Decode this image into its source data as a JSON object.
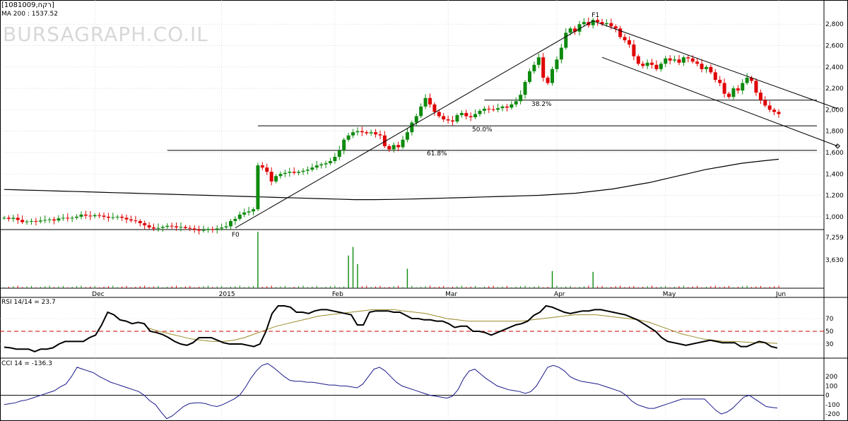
{
  "header": {
    "symbol": "[1081009,רקח]",
    "ma_label": "MA 200 : 1537.52",
    "watermark": "BURSAGRAPH.CO.IL"
  },
  "price_axis": {
    "ticks": [
      "2,800",
      "2,600",
      "2,400",
      "2,200",
      "2,000",
      "1,800",
      "1,600",
      "1,400",
      "1,200",
      "1,000"
    ]
  },
  "volume_axis": {
    "ticks": [
      "7,259",
      "3,630"
    ]
  },
  "months": [
    "Dec",
    "2015",
    "Feb",
    "Mar",
    "Apr",
    "May",
    "Jun"
  ],
  "fib": [
    {
      "label": "38.2%"
    },
    {
      "label": "50.0%"
    },
    {
      "label": "61.8%"
    }
  ],
  "points": {
    "f0": "F0",
    "f1": "F1"
  },
  "rsi": {
    "label": "RSI 14/14 = 23.7",
    "ticks": [
      "70",
      "50",
      "30"
    ]
  },
  "cci": {
    "label": "CCI 14 = -136.3",
    "ticks": [
      "200",
      "100",
      "0",
      "-100",
      "-200"
    ]
  },
  "colors": {
    "up": "#0e8a0e",
    "down": "#e00000",
    "line": "#000000",
    "rsi_signal": "#9a8a2a",
    "cci": "#1a1a8c",
    "rsi_mid": "#cc0000",
    "grid": "#c8c8c8"
  },
  "chart_data": [
    {
      "type": "candlestick",
      "ylim": [
        880,
        2960
      ],
      "y_ticks": [
        1000,
        1200,
        1400,
        1600,
        1800,
        2000,
        2200,
        2400,
        2600,
        2800
      ],
      "x_months": [
        {
          "label": "Dec",
          "index": 20
        },
        {
          "label": "2015",
          "index": 48
        },
        {
          "label": "Feb",
          "index": 73
        },
        {
          "label": "Mar",
          "index": 98
        },
        {
          "label": "Apr",
          "index": 122
        },
        {
          "label": "May",
          "index": 146
        },
        {
          "label": "Jun",
          "index": 171
        }
      ],
      "closes": [
        990,
        980,
        990,
        970,
        950,
        955,
        960,
        955,
        965,
        970,
        975,
        965,
        985,
        990,
        985,
        990,
        1000,
        1020,
        1010,
        1005,
        1015,
        1010,
        1000,
        990,
        995,
        1000,
        990,
        975,
        965,
        960,
        940,
        920,
        900,
        890,
        895,
        905,
        915,
        910,
        900,
        905,
        895,
        890,
        880,
        870,
        875,
        885,
        880,
        890,
        900,
        910,
        960,
        980,
        1020,
        1040,
        1050,
        1070,
        1480,
        1460,
        1420,
        1330,
        1380,
        1400,
        1410,
        1420,
        1410,
        1420,
        1430,
        1440,
        1460,
        1480,
        1490,
        1500,
        1520,
        1560,
        1620,
        1720,
        1760,
        1790,
        1800,
        1790,
        1780,
        1790,
        1770,
        1760,
        1660,
        1630,
        1670,
        1650,
        1720,
        1790,
        1880,
        1940,
        2030,
        2110,
        2050,
        1980,
        1940,
        1910,
        1900,
        1890,
        1950,
        1970,
        1940,
        1930,
        1960,
        1990,
        2010,
        2005,
        2000,
        2015,
        2030,
        2020,
        2050,
        2080,
        2140,
        2260,
        2360,
        2420,
        2490,
        2300,
        2250,
        2380,
        2470,
        2580,
        2720,
        2760,
        2730,
        2800,
        2820,
        2790,
        2840,
        2820,
        2800,
        2810,
        2780,
        2760,
        2680,
        2650,
        2610,
        2500,
        2430,
        2410,
        2440,
        2420,
        2380,
        2430,
        2480,
        2460,
        2470,
        2440,
        2490,
        2480,
        2450,
        2430,
        2380,
        2400,
        2350,
        2280,
        2250,
        2150,
        2120,
        2200,
        2180,
        2250,
        2300,
        2270,
        2160,
        2090,
        2040,
        2000,
        1980,
        1960
      ],
      "ma200": [
        1255,
        1250,
        1245,
        1240,
        1235,
        1230,
        1225,
        1220,
        1215,
        1210,
        1205,
        1200,
        1195,
        1190,
        1185,
        1180,
        1175,
        1170,
        1165,
        1160,
        1160,
        1162,
        1165,
        1170,
        1175,
        1180,
        1185,
        1190,
        1195,
        1200,
        1210,
        1220,
        1240,
        1260,
        1290,
        1320,
        1360,
        1400,
        1440,
        1470,
        1500,
        1520,
        1537.52
      ],
      "trendlines": [
        {
          "from": [
            51,
            895
          ],
          "to": [
            130,
            2830
          ]
        },
        {
          "from": [
            130,
            2830
          ],
          "to": [
            184,
            2010
          ]
        },
        {
          "from": [
            132,
            2490
          ],
          "to": [
            184,
            1660
          ]
        }
      ],
      "fib_levels": [
        {
          "label": "38.2%",
          "value": 2090
        },
        {
          "label": "50.0%",
          "value": 1850
        },
        {
          "label": "61.8%",
          "value": 1620
        }
      ],
      "base_level": 880
    },
    {
      "type": "bar",
      "name": "volume",
      "ylim": [
        0,
        7259
      ],
      "spikes": [
        {
          "index": 56,
          "value": 7259
        },
        {
          "index": 76,
          "value": 4200
        },
        {
          "index": 77,
          "value": 5300
        },
        {
          "index": 78,
          "value": 3100
        },
        {
          "index": 89,
          "value": 2500
        },
        {
          "index": 121,
          "value": 2200
        },
        {
          "index": 130,
          "value": 2100
        }
      ]
    },
    {
      "type": "line",
      "name": "RSI 14",
      "ylim": [
        10,
        100
      ],
      "ticks": [
        30,
        50,
        70
      ],
      "values": [
        25,
        24,
        22,
        22,
        22,
        18,
        22,
        22,
        24,
        30,
        34,
        34,
        34,
        34,
        40,
        44,
        60,
        80,
        76,
        68,
        66,
        62,
        64,
        62,
        50,
        48,
        45,
        40,
        34,
        30,
        28,
        32,
        40,
        40,
        40,
        36,
        32,
        30,
        30,
        30,
        28,
        26,
        30,
        50,
        78,
        90,
        90,
        88,
        80,
        80,
        78,
        82,
        84,
        84,
        82,
        80,
        78,
        76,
        60,
        60,
        80,
        82,
        82,
        82,
        80,
        80,
        75,
        70,
        70,
        68,
        68,
        66,
        66,
        62,
        56,
        58,
        58,
        50,
        50,
        48,
        44,
        48,
        52,
        56,
        60,
        62,
        66,
        75,
        80,
        90,
        88,
        84,
        80,
        78,
        80,
        82,
        82,
        84,
        84,
        82,
        80,
        78,
        76,
        72,
        68,
        62,
        56,
        50,
        40,
        34,
        32,
        30,
        28,
        30,
        32,
        34,
        36,
        34,
        32,
        32,
        32,
        26,
        26,
        30,
        34,
        32,
        26,
        23.7
      ],
      "signal": [
        55,
        50,
        46,
        42,
        38,
        36,
        34,
        34,
        36,
        40,
        46,
        52,
        58,
        62,
        66,
        70,
        74,
        76,
        78,
        80,
        82,
        84,
        84,
        84,
        82,
        80,
        78,
        74,
        70,
        68,
        66,
        66,
        66,
        66,
        66,
        66,
        68,
        70,
        72,
        74,
        76,
        76,
        76,
        74,
        72,
        70,
        68,
        64,
        58,
        52,
        46,
        42,
        38,
        36,
        34,
        34,
        33,
        32,
        32,
        31
      ]
    },
    {
      "type": "line",
      "name": "CCI 14",
      "ylim": [
        -260,
        360
      ],
      "ticks": [
        -200,
        -100,
        0,
        100,
        200
      ],
      "values": [
        -100,
        -90,
        -80,
        -60,
        -50,
        -30,
        -10,
        10,
        30,
        50,
        90,
        120,
        200,
        300,
        280,
        260,
        240,
        200,
        170,
        140,
        120,
        100,
        80,
        60,
        40,
        0,
        -60,
        -100,
        -180,
        -250,
        -220,
        -170,
        -120,
        -90,
        -80,
        -80,
        -90,
        -110,
        -120,
        -100,
        -70,
        -40,
        0,
        80,
        180,
        260,
        320,
        340,
        300,
        250,
        200,
        160,
        150,
        150,
        140,
        140,
        130,
        120,
        110,
        110,
        100,
        100,
        90,
        80,
        120,
        200,
        280,
        300,
        260,
        200,
        140,
        100,
        80,
        60,
        40,
        20,
        0,
        -10,
        -20,
        -30,
        -10,
        60,
        180,
        260,
        280,
        230,
        180,
        140,
        100,
        80,
        60,
        50,
        40,
        20,
        40,
        100,
        200,
        300,
        320,
        300,
        260,
        200,
        170,
        150,
        140,
        130,
        120,
        100,
        80,
        60,
        40,
        0,
        -60,
        -100,
        -120,
        -140,
        -140,
        -120,
        -100,
        -80,
        -60,
        -40,
        -40,
        -40,
        -40,
        -40,
        -100,
        -160,
        -200,
        -180,
        -140,
        -80,
        -20,
        0,
        -40,
        -80,
        -120,
        -130,
        -136.3
      ]
    }
  ]
}
